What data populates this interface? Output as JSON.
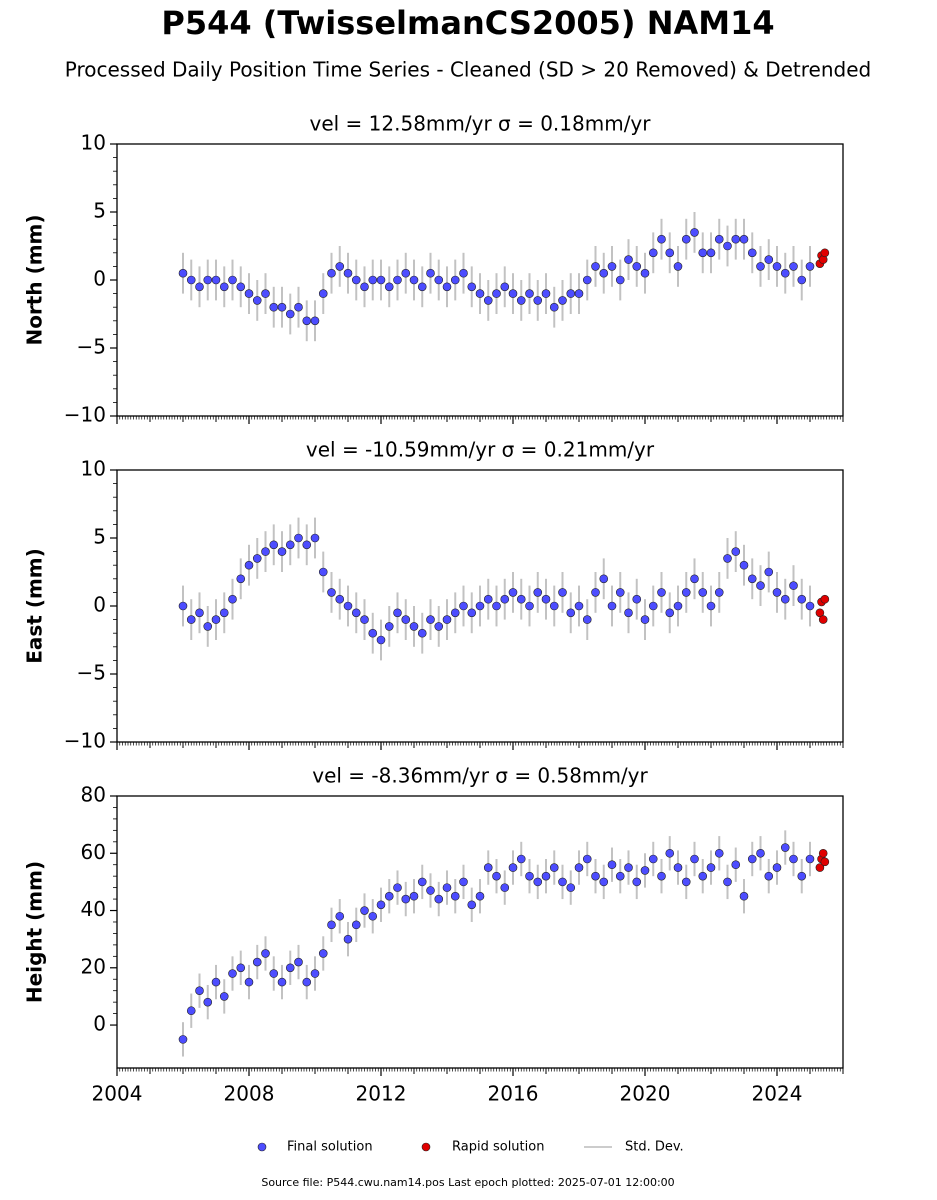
{
  "title": "P544 (TwisselmanCS2005) NAM14",
  "subtitle": "Processed Daily Position Time Series - Cleaned (SD > 20 Removed) & Detrended",
  "footer": "Source file: P544.cwu.nam14.pos  Last epoch plotted: 2025-07-01 12:00:00",
  "chart_data": [
    {
      "type": "scatter",
      "title": "vel = 12.58mm/yr   σ = 0.18mm/yr",
      "y_label": "North (mm)",
      "error_label": "Std. Dev.",
      "xlim": [
        2004,
        2026
      ],
      "xticks": [
        2004,
        2008,
        2012,
        2016,
        2020,
        2024
      ],
      "show_xtick_labels": false,
      "ylim": [
        -10,
        10
      ],
      "yticks": [
        {
          "value": -10,
          "label": "−10"
        },
        {
          "value": -5,
          "label": "−5"
        },
        0,
        5,
        10
      ],
      "series": [
        {
          "name": "Final solution",
          "color": "#4d4dff",
          "error": 1.5,
          "x": [
            2006,
            2006.25,
            2006.5,
            2006.75,
            2007,
            2007.25,
            2007.5,
            2007.75,
            2008,
            2008.25,
            2008.5,
            2008.75,
            2009,
            2009.25,
            2009.5,
            2009.75,
            2010,
            2010.25,
            2010.5,
            2010.75,
            2011,
            2011.25,
            2011.5,
            2011.75,
            2012,
            2012.25,
            2012.5,
            2012.75,
            2013,
            2013.25,
            2013.5,
            2013.75,
            2014,
            2014.25,
            2014.5,
            2014.75,
            2015,
            2015.25,
            2015.5,
            2015.75,
            2016,
            2016.25,
            2016.5,
            2016.75,
            2017,
            2017.25,
            2017.5,
            2017.75,
            2018,
            2018.25,
            2018.5,
            2018.75,
            2019,
            2019.25,
            2019.5,
            2019.75,
            2020,
            2020.25,
            2020.5,
            2020.75,
            2021,
            2021.25,
            2021.5,
            2021.75,
            2022,
            2022.25,
            2022.5,
            2022.75,
            2023,
            2023.25,
            2023.5,
            2023.75,
            2024,
            2024.25,
            2024.5,
            2024.75,
            2025
          ],
          "values": [
            0.5,
            0,
            -0.5,
            0,
            0,
            -0.5,
            0,
            -0.5,
            -1,
            -1.5,
            -1,
            -2,
            -2,
            -2.5,
            -2,
            -3,
            -3,
            -1,
            0.5,
            1,
            0.5,
            0,
            -0.5,
            0,
            0,
            -0.5,
            0,
            0.5,
            0,
            -0.5,
            0.5,
            0,
            -0.5,
            0,
            0.5,
            -0.5,
            -1,
            -1.5,
            -1,
            -0.5,
            -1,
            -1.5,
            -1,
            -1.5,
            -1,
            -2,
            -1.5,
            -1,
            -1,
            0,
            1,
            0.5,
            1,
            0,
            1.5,
            1,
            0.5,
            2,
            3,
            2,
            1,
            3,
            3.5,
            2,
            2,
            3,
            2.5,
            3,
            3,
            2,
            1,
            1.5,
            1,
            0.5,
            1,
            0,
            1
          ]
        },
        {
          "name": "Rapid solution",
          "color": "#e00000",
          "x": [
            2025.3,
            2025.35,
            2025.4,
            2025.45
          ],
          "values": [
            1.2,
            1.8,
            1.5,
            2.0
          ]
        }
      ]
    },
    {
      "type": "scatter",
      "title": "vel = -10.59mm/yr   σ = 0.21mm/yr",
      "y_label": "East (mm)",
      "xlim": [
        2004,
        2026
      ],
      "xticks": [
        2004,
        2008,
        2012,
        2016,
        2020,
        2024
      ],
      "show_xtick_labels": false,
      "ylim": [
        -10,
        10
      ],
      "yticks": [
        {
          "value": -10,
          "label": "−10"
        },
        {
          "value": -5,
          "label": "−5"
        },
        0,
        5,
        10
      ],
      "series": [
        {
          "color": "#4d4dff",
          "error": 1.5,
          "x": [
            2006,
            2006.25,
            2006.5,
            2006.75,
            2007,
            2007.25,
            2007.5,
            2007.75,
            2008,
            2008.25,
            2008.5,
            2008.75,
            2009,
            2009.25,
            2009.5,
            2009.75,
            2010,
            2010.25,
            2010.5,
            2010.75,
            2011,
            2011.25,
            2011.5,
            2011.75,
            2012,
            2012.25,
            2012.5,
            2012.75,
            2013,
            2013.25,
            2013.5,
            2013.75,
            2014,
            2014.25,
            2014.5,
            2014.75,
            2015,
            2015.25,
            2015.5,
            2015.75,
            2016,
            2016.25,
            2016.5,
            2016.75,
            2017,
            2017.25,
            2017.5,
            2017.75,
            2018,
            2018.25,
            2018.5,
            2018.75,
            2019,
            2019.25,
            2019.5,
            2019.75,
            2020,
            2020.25,
            2020.5,
            2020.75,
            2021,
            2021.25,
            2021.5,
            2021.75,
            2022,
            2022.25,
            2022.5,
            2022.75,
            2023,
            2023.25,
            2023.5,
            2023.75,
            2024,
            2024.25,
            2024.5,
            2024.75,
            2025
          ],
          "values": [
            0,
            -1,
            -0.5,
            -1.5,
            -1,
            -0.5,
            0.5,
            2,
            3,
            3.5,
            4,
            4.5,
            4,
            4.5,
            5,
            4.5,
            5,
            2.5,
            1,
            0.5,
            0,
            -0.5,
            -1,
            -2,
            -2.5,
            -1.5,
            -0.5,
            -1,
            -1.5,
            -2,
            -1,
            -1.5,
            -1,
            -0.5,
            0,
            -0.5,
            0,
            0.5,
            0,
            0.5,
            1,
            0.5,
            0,
            1,
            0.5,
            0,
            1,
            -0.5,
            0,
            -1,
            1,
            2,
            0,
            1,
            -0.5,
            0.5,
            -1,
            0,
            1,
            -0.5,
            0,
            1,
            2,
            1,
            0,
            1,
            3.5,
            4,
            3,
            2,
            1.5,
            2.5,
            1,
            0.5,
            1.5,
            0.5,
            0
          ]
        },
        {
          "color": "#e00000",
          "x": [
            2025.3,
            2025.35,
            2025.4,
            2025.45
          ],
          "values": [
            -0.5,
            0.3,
            -1.0,
            0.5
          ]
        }
      ]
    },
    {
      "type": "scatter",
      "title": "vel = -8.36mm/yr   σ = 0.58mm/yr",
      "y_label": "Height (mm)",
      "xlim": [
        2004,
        2026
      ],
      "xticks": [
        2004,
        2008,
        2012,
        2016,
        2020,
        2024
      ],
      "show_xtick_labels": true,
      "ylim": [
        -15,
        80
      ],
      "yticks": [
        0,
        20,
        40,
        60,
        80
      ],
      "series": [
        {
          "color": "#4d4dff",
          "error": 6,
          "x": [
            2006,
            2006.25,
            2006.5,
            2006.75,
            2007,
            2007.25,
            2007.5,
            2007.75,
            2008,
            2008.25,
            2008.5,
            2008.75,
            2009,
            2009.25,
            2009.5,
            2009.75,
            2010,
            2010.25,
            2010.5,
            2010.75,
            2011,
            2011.25,
            2011.5,
            2011.75,
            2012,
            2012.25,
            2012.5,
            2012.75,
            2013,
            2013.25,
            2013.5,
            2013.75,
            2014,
            2014.25,
            2014.5,
            2014.75,
            2015,
            2015.25,
            2015.5,
            2015.75,
            2016,
            2016.25,
            2016.5,
            2016.75,
            2017,
            2017.25,
            2017.5,
            2017.75,
            2018,
            2018.25,
            2018.5,
            2018.75,
            2019,
            2019.25,
            2019.5,
            2019.75,
            2020,
            2020.25,
            2020.5,
            2020.75,
            2021,
            2021.25,
            2021.5,
            2021.75,
            2022,
            2022.25,
            2022.5,
            2022.75,
            2023,
            2023.25,
            2023.5,
            2023.75,
            2024,
            2024.25,
            2024.5,
            2024.75,
            2025
          ],
          "values": [
            -5,
            5,
            12,
            8,
            15,
            10,
            18,
            20,
            15,
            22,
            25,
            18,
            15,
            20,
            22,
            15,
            18,
            25,
            35,
            38,
            30,
            35,
            40,
            38,
            42,
            45,
            48,
            44,
            45,
            50,
            47,
            44,
            48,
            45,
            50,
            42,
            45,
            55,
            52,
            48,
            55,
            58,
            52,
            50,
            52,
            55,
            50,
            48,
            55,
            58,
            52,
            50,
            56,
            52,
            55,
            50,
            54,
            58,
            52,
            60,
            55,
            50,
            58,
            52,
            55,
            60,
            50,
            56,
            45,
            58,
            60,
            52,
            55,
            62,
            58,
            52,
            58
          ]
        },
        {
          "color": "#e00000",
          "x": [
            2025.3,
            2025.35,
            2025.4,
            2025.45
          ],
          "values": [
            55,
            58,
            60,
            57
          ]
        }
      ]
    }
  ]
}
